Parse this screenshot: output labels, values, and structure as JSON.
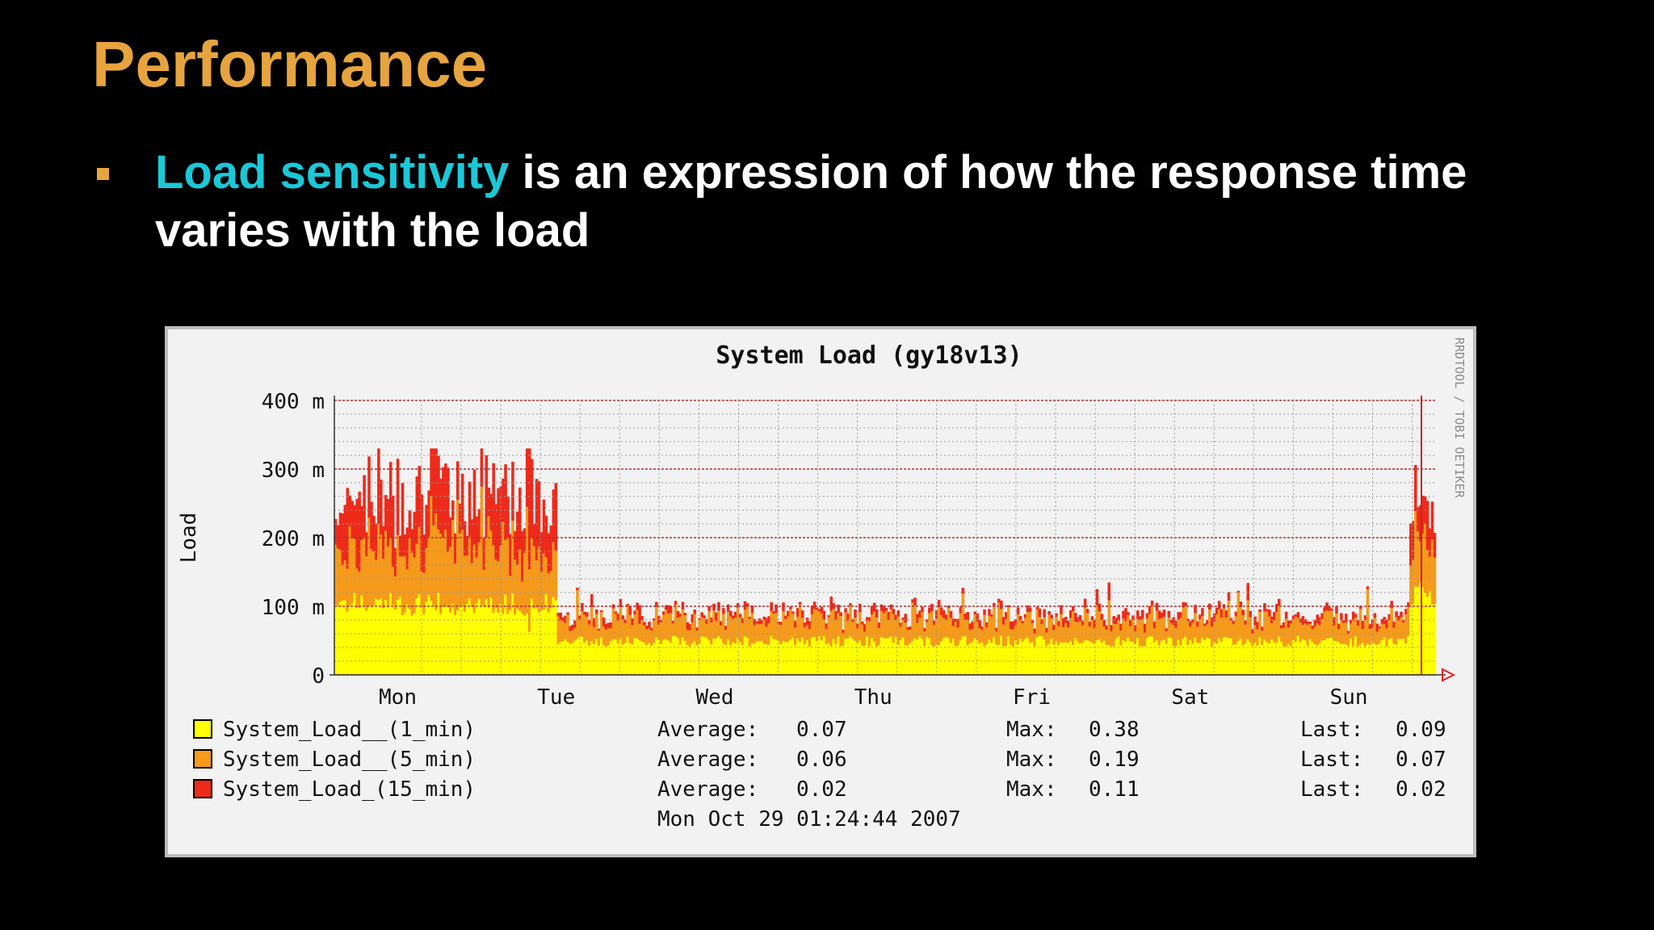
{
  "slide": {
    "title": "Performance",
    "bullet_highlight": "Load sensitivity",
    "bullet_rest": " is an expression of how the response time varies with the load"
  },
  "colors": {
    "background": "#000000",
    "title": "#E6A43E",
    "highlight": "#1BC8D8",
    "text": "#FFFFFF",
    "load_1min": "#FFFF00",
    "load_5min": "#F59A1A",
    "load_15min": "#EE2A1A",
    "chart_bg": "#F2F2F2",
    "grid": "#B03030"
  },
  "chart_data": {
    "type": "area",
    "title": "System Load (gy18v13)",
    "ylabel": "Load",
    "xlabel": "",
    "ylim": [
      0,
      400
    ],
    "yticks": [
      0,
      100,
      200,
      300,
      400
    ],
    "ytick_labels": [
      "0",
      "100 m",
      "200 m",
      "300 m",
      "400 m"
    ],
    "x_categories": [
      "Mon",
      "Tue",
      "Wed",
      "Thu",
      "Fri",
      "Sat",
      "Sun"
    ],
    "x_unit": "days since start of window",
    "x_range": [
      -0.4,
      6.55
    ],
    "grid": true,
    "stacked": true,
    "watermark": "RRDTOOL / TOBI OETIKER",
    "segments": [
      {
        "x0": -0.4,
        "x1": 1.0,
        "s1": 105,
        "s2": 85,
        "s3": 75
      },
      {
        "x0": 1.0,
        "x1": 6.38,
        "s1": 50,
        "s2": 33,
        "s3": 8
      },
      {
        "x0": 6.38,
        "x1": 6.55,
        "s1": 120,
        "s2": 80,
        "s3": 45
      }
    ],
    "series": [
      {
        "name": "System_Load__(1_min)",
        "color": "#FFFF00",
        "average": "0.07",
        "max": "0.38",
        "last": "0.09"
      },
      {
        "name": "System_Load__(5_min)",
        "color": "#F59A1A",
        "average": "0.06",
        "max": "0.19",
        "last": "0.07"
      },
      {
        "name": "System_Load_(15_min)",
        "color": "#EE2A1A",
        "average": "0.02",
        "max": "0.11",
        "last": "0.02"
      }
    ],
    "stat_labels": {
      "average": "Average:",
      "max": "Max:",
      "last": "Last:"
    },
    "timestamp": "Mon Oct 29 01:24:44 2007"
  }
}
